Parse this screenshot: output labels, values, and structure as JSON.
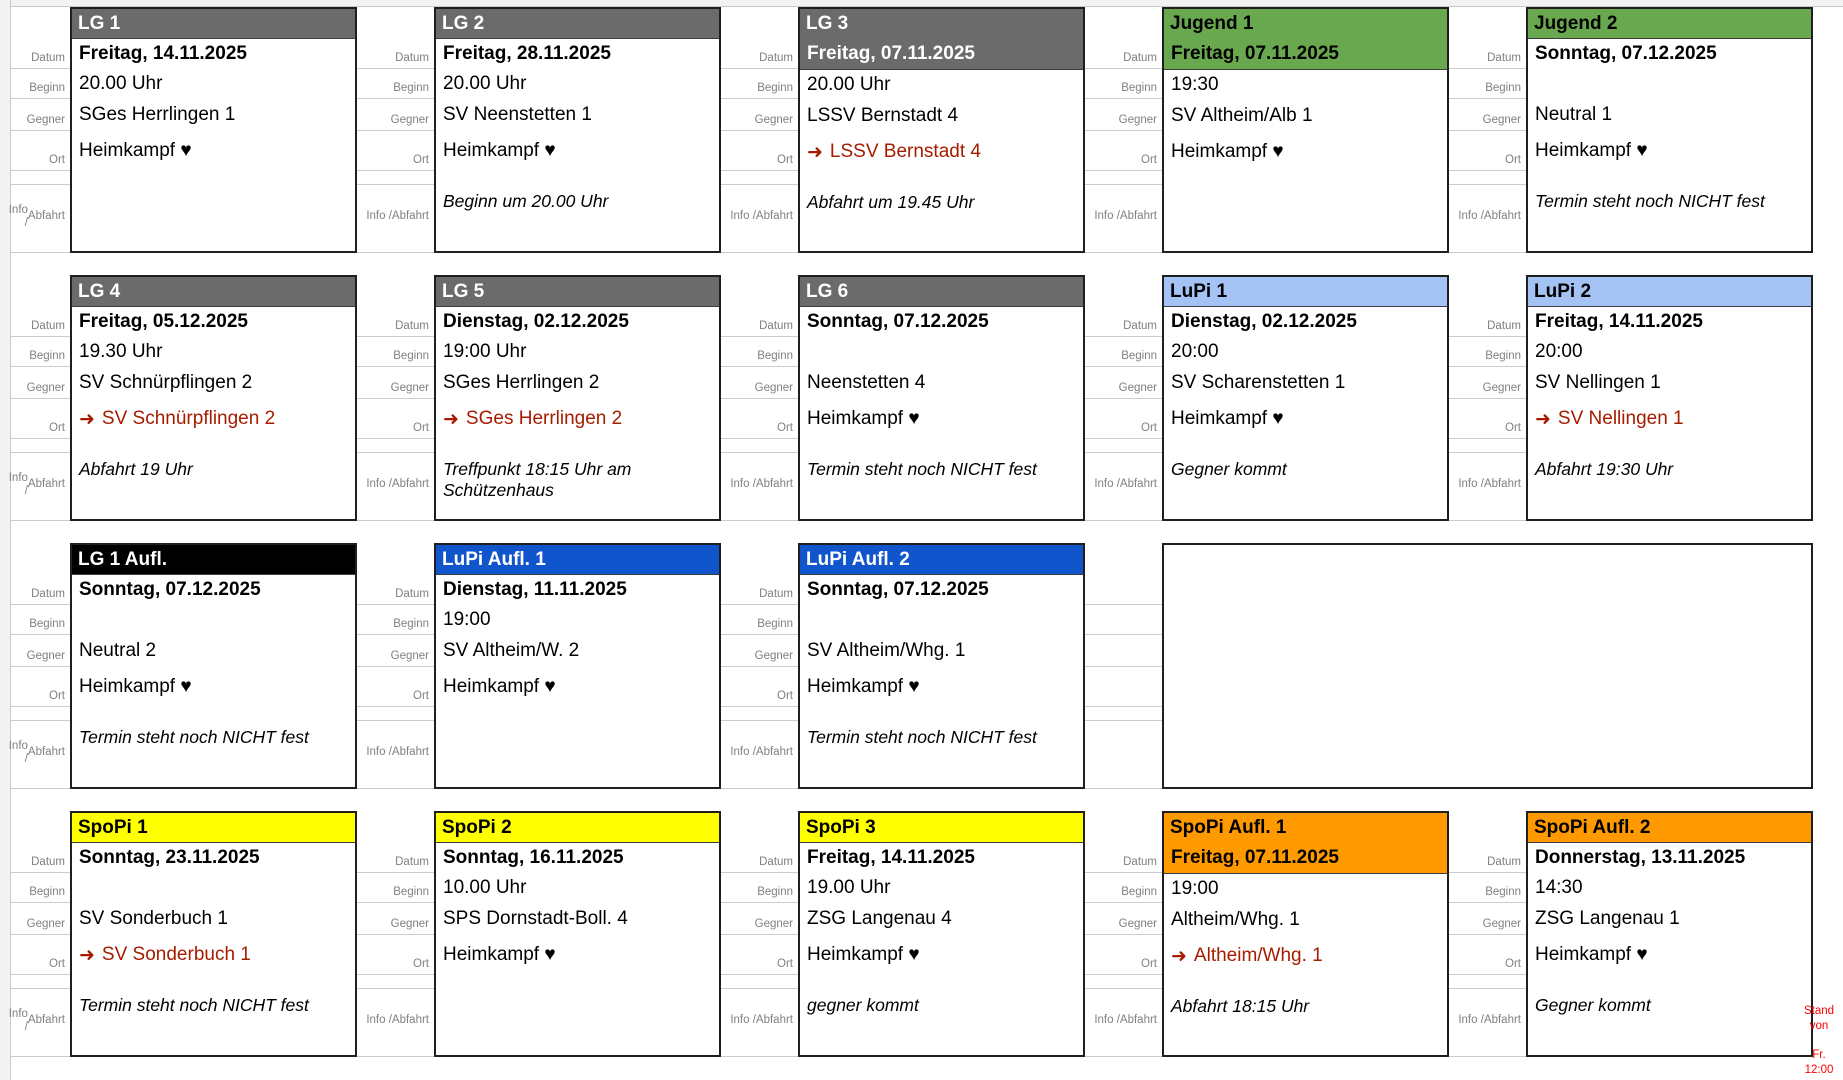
{
  "meta": {
    "stand_note_lines": [
      "Stand",
      "von",
      "Fr.",
      "12:00"
    ]
  },
  "row_labels": {
    "datum": "Datum",
    "beginn": "Beginn",
    "gegner": "Gegner",
    "ort": "Ort",
    "info1": "Info /",
    "info2": "Abfahrt"
  },
  "icons": {
    "away_arrow": "➜"
  },
  "colors": {
    "lg_gray": "#6b6b6b",
    "jugend_green": "#6aa84f",
    "lupi_light_blue": "#a4c2f4",
    "lupi_blue": "#1155cc",
    "aufl_black": "#000000",
    "spopi_yellow": "#ffff00",
    "spopi_orange": "#ff9900",
    "away_red": "#a61c00",
    "note_red": "#ff0000",
    "label_gray": "#808080"
  },
  "rows": [
    [
      {
        "type": "match",
        "title": "LG 1",
        "header": "lg_gray",
        "header_fg": "#ffffff",
        "date_in_header": false,
        "datum": "Freitag, 14.11.2025",
        "beginn": "20.00 Uhr",
        "gegner": "SGes Herrlingen 1",
        "ort": "Heimkampf ♥",
        "away": false,
        "info": ""
      },
      {
        "type": "match",
        "title": "LG 2",
        "header": "lg_gray",
        "header_fg": "#ffffff",
        "date_in_header": false,
        "datum": "Freitag, 28.11.2025",
        "beginn": "20.00 Uhr",
        "gegner": "SV Neenstetten 1",
        "ort": "Heimkampf ♥",
        "away": false,
        "info": "Beginn um 20.00 Uhr"
      },
      {
        "type": "match",
        "title": "LG 3",
        "header": "lg_gray",
        "header_fg": "#ffffff",
        "date_in_header": true,
        "datum": "Freitag, 07.11.2025",
        "beginn": "20.00 Uhr",
        "gegner": "LSSV Bernstadt 4",
        "ort": "LSSV Bernstadt 4",
        "away": true,
        "info": "Abfahrt um 19.45 Uhr"
      },
      {
        "type": "match",
        "title": "Jugend 1",
        "header": "jugend_green",
        "header_fg": "#000000",
        "date_in_header": true,
        "datum": "Freitag, 07.11.2025",
        "beginn": "19:30",
        "gegner": "SV Altheim/Alb 1",
        "ort": "Heimkampf ♥",
        "away": false,
        "info": ""
      },
      {
        "type": "match",
        "title": "Jugend 2",
        "header": "jugend_green",
        "header_fg": "#000000",
        "date_in_header": false,
        "datum": "Sonntag, 07.12.2025",
        "beginn": "",
        "gegner": "Neutral 1",
        "ort": "Heimkampf ♥",
        "away": false,
        "info": "Termin steht noch NICHT fest"
      }
    ],
    [
      {
        "type": "match",
        "title": "LG 4",
        "header": "lg_gray",
        "header_fg": "#ffffff",
        "date_in_header": false,
        "datum": "Freitag, 05.12.2025",
        "beginn": "19.30 Uhr",
        "gegner": "SV Schnürpflingen 2",
        "ort": "SV Schnürpflingen 2",
        "away": true,
        "info": "Abfahrt 19 Uhr"
      },
      {
        "type": "match",
        "title": "LG 5",
        "header": "lg_gray",
        "header_fg": "#ffffff",
        "date_in_header": false,
        "datum": "Dienstag, 02.12.2025",
        "beginn": "19:00 Uhr",
        "gegner": "SGes Herrlingen 2",
        "ort": "SGes Herrlingen 2",
        "away": true,
        "info": "Treffpunkt 18:15 Uhr am Schützenhaus"
      },
      {
        "type": "match",
        "title": "LG 6",
        "header": "lg_gray",
        "header_fg": "#ffffff",
        "date_in_header": false,
        "datum": "Sonntag, 07.12.2025",
        "beginn": "",
        "gegner": "Neenstetten 4",
        "ort": "Heimkampf ♥",
        "away": false,
        "info": "Termin steht noch NICHT fest"
      },
      {
        "type": "match",
        "title": "LuPi 1",
        "header": "lupi_light_blue",
        "header_fg": "#000000",
        "date_in_header": false,
        "datum": "Dienstag, 02.12.2025",
        "beginn": "20:00",
        "gegner": "SV Scharenstetten 1",
        "ort": "Heimkampf ♥",
        "away": false,
        "info": "Gegner kommt"
      },
      {
        "type": "match",
        "title": "LuPi 2",
        "header": "lupi_light_blue",
        "header_fg": "#000000",
        "date_in_header": false,
        "datum": "Freitag, 14.11.2025",
        "beginn": "20:00",
        "gegner": "SV Nellingen 1",
        "ort": "SV Nellingen 1",
        "away": true,
        "info": "Abfahrt 19:30 Uhr"
      }
    ],
    [
      {
        "type": "match",
        "title": "LG 1 Aufl.",
        "header": "aufl_black",
        "header_fg": "#ffffff",
        "date_in_header": false,
        "datum": "Sonntag, 07.12.2025",
        "beginn": "",
        "gegner": "Neutral 2",
        "ort": "Heimkampf ♥",
        "away": false,
        "info": "Termin steht noch NICHT fest"
      },
      {
        "type": "match",
        "title": "LuPi Aufl. 1",
        "header": "lupi_blue",
        "header_fg": "#ffffff",
        "date_in_header": false,
        "datum": "Dienstag, 11.11.2025",
        "beginn": "19:00",
        "gegner": "SV Altheim/W. 2",
        "ort": "Heimkampf ♥",
        "away": false,
        "info": ""
      },
      {
        "type": "match",
        "title": "LuPi Aufl. 2",
        "header": "lupi_blue",
        "header_fg": "#ffffff",
        "date_in_header": false,
        "datum": "Sonntag, 07.12.2025",
        "beginn": "",
        "gegner": "SV Altheim/Whg. 1",
        "ort": "Heimkampf ♥",
        "away": false,
        "info": "Termin steht noch NICHT fest"
      },
      {
        "type": "empty"
      }
    ],
    [
      {
        "type": "match",
        "title": "SpoPi 1",
        "header": "spopi_yellow",
        "header_fg": "#000000",
        "date_in_header": false,
        "datum": "Sonntag, 23.11.2025",
        "beginn": "",
        "gegner": "SV Sonderbuch 1",
        "ort": "SV Sonderbuch 1",
        "away": true,
        "info": "Termin steht noch NICHT fest"
      },
      {
        "type": "match",
        "title": "SpoPi 2",
        "header": "spopi_yellow",
        "header_fg": "#000000",
        "date_in_header": false,
        "datum": "Sonntag, 16.11.2025",
        "beginn": "10.00 Uhr",
        "gegner": "SPS Dornstadt-Boll. 4",
        "ort": "Heimkampf ♥",
        "away": false,
        "info": ""
      },
      {
        "type": "match",
        "title": "SpoPi 3",
        "header": "spopi_yellow",
        "header_fg": "#000000",
        "date_in_header": false,
        "datum": "Freitag, 14.11.2025",
        "beginn": "19.00 Uhr",
        "gegner": "ZSG Langenau 4",
        "ort": "Heimkampf ♥",
        "away": false,
        "info": "gegner kommt"
      },
      {
        "type": "match",
        "title": "SpoPi Aufl. 1",
        "header": "spopi_orange",
        "header_fg": "#000000",
        "date_in_header": true,
        "datum": "Freitag, 07.11.2025",
        "beginn": "19:00",
        "gegner": "Altheim/Whg. 1",
        "ort": "Altheim/Whg. 1",
        "away": true,
        "info": "Abfahrt 18:15 Uhr"
      },
      {
        "type": "match",
        "title": "SpoPi Aufl. 2",
        "header": "spopi_orange",
        "header_fg": "#000000",
        "date_in_header": false,
        "datum": "Donnerstag, 13.11.2025",
        "beginn": "14:30",
        "gegner": "ZSG Langenau 1",
        "ort": "Heimkampf ♥",
        "away": false,
        "info": "Gegner kommt"
      }
    ]
  ]
}
